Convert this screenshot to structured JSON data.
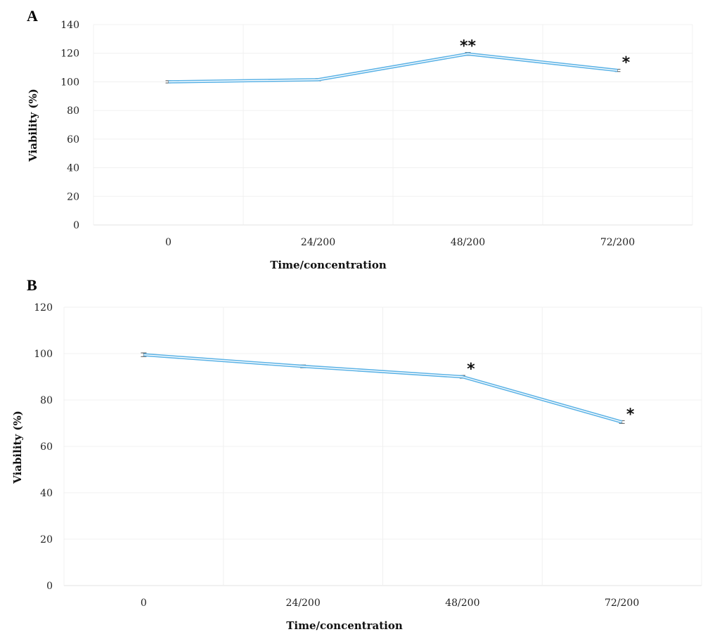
{
  "chart_data": [
    {
      "panel": "A",
      "type": "line",
      "categories": [
        "0",
        "24/200",
        "48/200",
        "72/200"
      ],
      "series": [
        {
          "values": [
            100,
            101.5,
            119.5,
            108
          ]
        }
      ],
      "error_bars": [
        0.8,
        0.8,
        1.0,
        0.8
      ],
      "annotations": [
        "",
        "",
        "**",
        "*"
      ],
      "xlabel": "Time/concentration",
      "ylabel": "Viability (%)",
      "ylim": [
        0,
        140
      ],
      "yticks": [
        0,
        20,
        40,
        60,
        80,
        100,
        120,
        140
      ],
      "grid": true,
      "line_color": "#5DB3E6"
    },
    {
      "panel": "B",
      "type": "line",
      "categories": [
        "0",
        "24/200",
        "48/200",
        "72/200"
      ],
      "series": [
        {
          "values": [
            99.5,
            94.5,
            90,
            70.5
          ]
        }
      ],
      "error_bars": [
        0.8,
        0.6,
        0.6,
        0.6
      ],
      "annotations": [
        "",
        "",
        "*",
        "*"
      ],
      "xlabel": "Time/concentration",
      "ylabel": "Viability (%)",
      "ylim": [
        0,
        120
      ],
      "yticks": [
        0,
        20,
        40,
        60,
        80,
        100,
        120
      ],
      "grid": true,
      "line_color": "#5DB3E6"
    }
  ]
}
